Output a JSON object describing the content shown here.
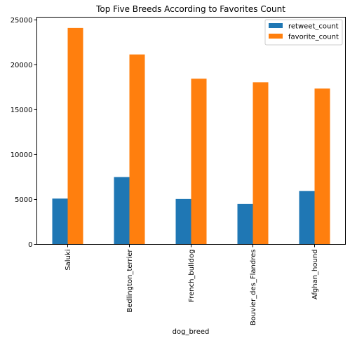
{
  "chart_data": {
    "type": "bar",
    "title": "Top Five Breeds According to Favorites Count",
    "xlabel": "dog_breed",
    "ylabel": "",
    "categories": [
      "Saluki",
      "Bedlington_terrier",
      "French_bulldog",
      "Bouvier_des_Flandres",
      "Afghan_hound"
    ],
    "series": [
      {
        "name": "retweet_count",
        "values": [
          5100,
          7500,
          5050,
          4500,
          5950
        ],
        "color": "#1f77b4"
      },
      {
        "name": "favorite_count",
        "values": [
          24100,
          21150,
          18450,
          18050,
          17350
        ],
        "color": "#ff7f0e"
      }
    ],
    "ylim": [
      0,
      25300
    ],
    "yticks": [
      0,
      5000,
      10000,
      15000,
      20000,
      25000
    ],
    "grid": false,
    "legend_position": "top-right"
  }
}
